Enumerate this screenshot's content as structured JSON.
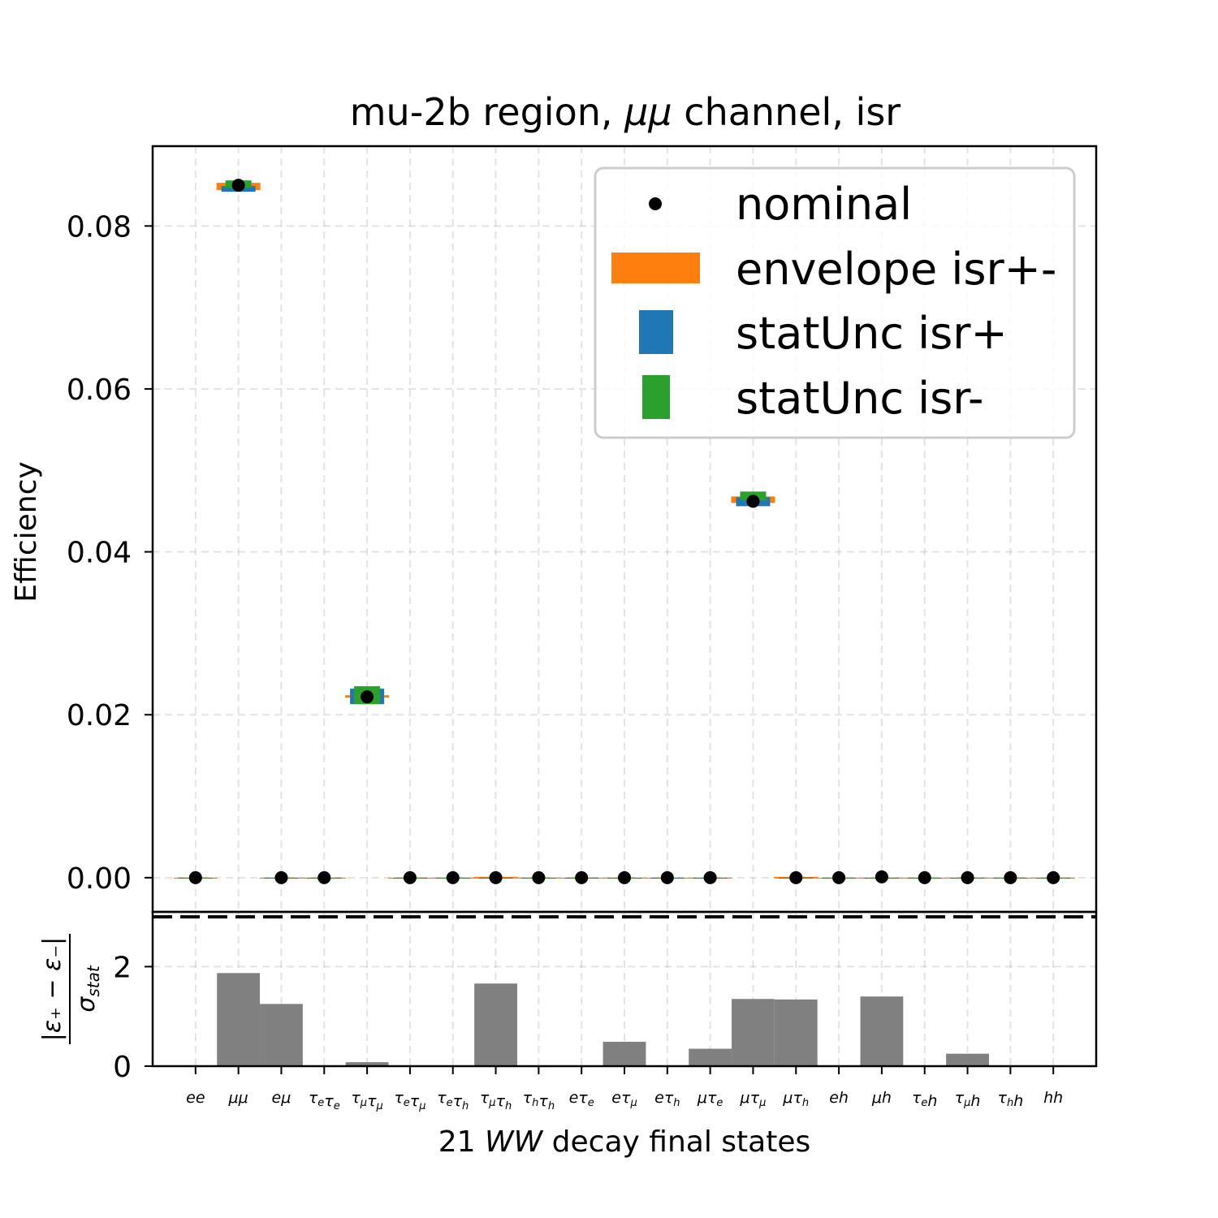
{
  "colors": {
    "nominal": "#000000",
    "envelope": "#ff7f0e",
    "stat_plus": "#1f77b4",
    "stat_minus": "#2ca02c",
    "ratio_bar": "#808080"
  },
  "chart_data": [
    {
      "type": "scatter",
      "title": "mu-2b region, μμ channel, isr",
      "title_parts": [
        "mu-2b region, ",
        "μμ",
        " channel, isr"
      ],
      "ylabel": "Efficiency",
      "ylim": [
        -0.0042,
        0.0898
      ],
      "yticks": [
        0.0,
        0.02,
        0.04,
        0.06,
        0.08
      ],
      "ytick_labels": [
        "0.00",
        "0.02",
        "0.04",
        "0.06",
        "0.08"
      ],
      "grid": true,
      "legend_position": "top-right",
      "legend": [
        "nominal",
        "envelope isr+-",
        "statUnc isr+",
        "statUnc isr-"
      ],
      "categories": [
        "ee",
        "μμ",
        "eμ",
        "τeτe",
        "τμτμ",
        "τeτμ",
        "τeτh",
        "τμτh",
        "τhτh",
        "eτe",
        "eτμ",
        "eτh",
        "μτe",
        "μτμ",
        "μτh",
        "eh",
        "μh",
        "τeh",
        "τμh",
        "τhh",
        "hh"
      ],
      "nominal": [
        0.0,
        0.085,
        0.0,
        0.0,
        0.0222,
        0.0,
        0.0,
        0.0,
        0.0,
        0.0,
        0.0,
        0.0,
        0.0,
        0.0462,
        0.0,
        0.0,
        0.0001,
        0.0,
        0.0,
        0.0,
        0.0
      ],
      "envelope": [
        [
          0,
          0
        ],
        [
          0.0844,
          0.0853
        ],
        [
          0,
          0
        ],
        [
          0,
          0
        ],
        [
          0.0221,
          0.0224
        ],
        [
          0,
          0
        ],
        [
          0,
          0
        ],
        [
          -0.0001,
          0.0001
        ],
        [
          0,
          0
        ],
        [
          0,
          0
        ],
        [
          0,
          0
        ],
        [
          0,
          0
        ],
        [
          0,
          0
        ],
        [
          0.046,
          0.0468
        ],
        [
          -0.0001,
          0.0001
        ],
        [
          0,
          0
        ],
        [
          0,
          0
        ],
        [
          0,
          0
        ],
        [
          0,
          0
        ],
        [
          0,
          0
        ],
        [
          0,
          0
        ]
      ],
      "stat_plus": [
        [
          0,
          0
        ],
        [
          0.0842,
          0.0849
        ],
        [
          0,
          0
        ],
        [
          0,
          0
        ],
        [
          0.0213,
          0.0232
        ],
        [
          0,
          0
        ],
        [
          0,
          0
        ],
        [
          0,
          0
        ],
        [
          0,
          0
        ],
        [
          0,
          0
        ],
        [
          0,
          0
        ],
        [
          0,
          0
        ],
        [
          0,
          0
        ],
        [
          0.0456,
          0.0467
        ],
        [
          0,
          0
        ],
        [
          0,
          0
        ],
        [
          0,
          0
        ],
        [
          0,
          0
        ],
        [
          0,
          0
        ],
        [
          0,
          0
        ],
        [
          0,
          0
        ]
      ],
      "stat_minus": [
        [
          0,
          0
        ],
        [
          0.0847,
          0.0856
        ],
        [
          0,
          0
        ],
        [
          0,
          0
        ],
        [
          0.0213,
          0.0235
        ],
        [
          0,
          0
        ],
        [
          0,
          0
        ],
        [
          0,
          0
        ],
        [
          0,
          0
        ],
        [
          0,
          0
        ],
        [
          0,
          0
        ],
        [
          0,
          0
        ],
        [
          0,
          0
        ],
        [
          0.0463,
          0.0474
        ],
        [
          0,
          0
        ],
        [
          0,
          0
        ],
        [
          0,
          0
        ],
        [
          0,
          0
        ],
        [
          0,
          0
        ],
        [
          0,
          0
        ],
        [
          0,
          0
        ]
      ]
    },
    {
      "type": "bar",
      "ylabel": "|ε₊ − ε₋| / σstat",
      "ylim": [
        0,
        3.1
      ],
      "yticks": [
        0,
        2
      ],
      "ytick_labels": [
        "0",
        "2"
      ],
      "reference_line": 3.0,
      "xlabel": "21 WW decay final states",
      "xlabel_parts": [
        "21 ",
        "WW",
        " decay final states"
      ],
      "values": [
        0.0,
        1.87,
        1.25,
        0.0,
        0.08,
        0.0,
        0.0,
        1.66,
        0.0,
        0.0,
        0.49,
        0.0,
        0.35,
        1.35,
        1.34,
        0.0,
        1.4,
        0.0,
        0.25,
        0.0,
        0.0
      ]
    }
  ]
}
